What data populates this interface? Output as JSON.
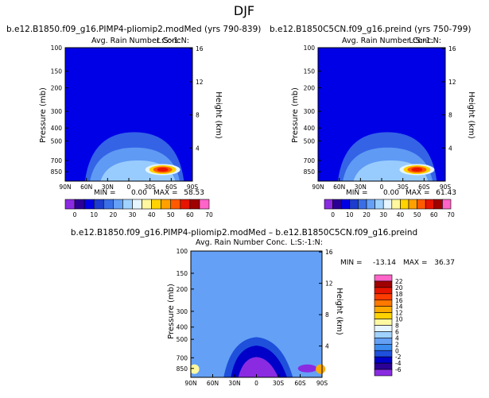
{
  "page_title": "DJF",
  "chart_data": [
    {
      "type": "heatmap",
      "title": "b.e12.B1850.f09_g16.PIMP4-pliomip2.modMed (yrs 790-839)",
      "subtitle": "Avg. Rain Number Conc.",
      "level_label": "L:S:-1:N:",
      "ylabel": "Pressure (mb)",
      "y2label": "Height (km)",
      "x_ticks": [
        "90N",
        "60N",
        "30N",
        "0",
        "30S",
        "60S",
        "90S"
      ],
      "x_range": [
        90,
        -90
      ],
      "y_ticks": [
        100,
        150,
        200,
        300,
        400,
        500,
        700,
        850
      ],
      "y_scale": "log",
      "y_range": [
        100,
        1000
      ],
      "y2_ticks": [
        16,
        12,
        8,
        4
      ],
      "min_label": "MIN =",
      "min": "0.00",
      "max_label": "MAX =",
      "max": "58.53",
      "colorbar": {
        "orientation": "horizontal",
        "labels": [
          "0",
          "10",
          "20",
          "30",
          "40",
          "50",
          "60",
          "70"
        ],
        "colors": [
          "#8a2be2",
          "#2b0096",
          "#0000e6",
          "#1e3ccd",
          "#3a6ee6",
          "#64a0f5",
          "#a0d2ff",
          "#e6f5ff",
          "#fff8a0",
          "#ffd200",
          "#ffa000",
          "#ff5a00",
          "#e61400",
          "#a00000",
          "#ff64c8"
        ]
      },
      "background_value": 0,
      "hotspot": {
        "lat": -48,
        "pressure": 820,
        "value": 58.53
      }
    },
    {
      "type": "heatmap",
      "title": "b.e12.B1850C5CN.f09_g16.preind (yrs 750-799)",
      "subtitle": "Avg. Rain Number Conc.",
      "level_label": "L:S:-1:N:",
      "ylabel": "Pressure (mb)",
      "y2label": "Height (km)",
      "x_ticks": [
        "90N",
        "60N",
        "30N",
        "0",
        "30S",
        "60S",
        "90S"
      ],
      "x_range": [
        90,
        -90
      ],
      "y_ticks": [
        100,
        150,
        200,
        300,
        400,
        500,
        700,
        850
      ],
      "y_scale": "log",
      "y_range": [
        100,
        1000
      ],
      "y2_ticks": [
        16,
        12,
        8,
        4
      ],
      "min_label": "MIN =",
      "min": "0.00",
      "max_label": "MAX =",
      "max": "61.43",
      "colorbar": {
        "orientation": "horizontal",
        "labels": [
          "0",
          "10",
          "20",
          "30",
          "40",
          "50",
          "60",
          "70"
        ],
        "colors": [
          "#8a2be2",
          "#2b0096",
          "#0000e6",
          "#1e3ccd",
          "#3a6ee6",
          "#64a0f5",
          "#a0d2ff",
          "#e6f5ff",
          "#fff8a0",
          "#ffd200",
          "#ffa000",
          "#ff5a00",
          "#e61400",
          "#a00000",
          "#ff64c8"
        ]
      },
      "background_value": 0,
      "hotspot": {
        "lat": -50,
        "pressure": 820,
        "value": 61.43
      }
    },
    {
      "type": "heatmap",
      "title": "b.e12.B1850.f09_g16.PIMP4-pliomip2.modMed – b.e12.B1850C5CN.f09_g16.preind",
      "subtitle": "Avg. Rain Number Conc.",
      "level_label": "L:S:-1:N:",
      "ylabel": "Pressure (mb)",
      "y2label": "Height (km)",
      "x_ticks": [
        "90N",
        "60N",
        "30N",
        "0",
        "30S",
        "60S",
        "90S"
      ],
      "x_range": [
        90,
        -90
      ],
      "y_ticks": [
        100,
        150,
        200,
        300,
        400,
        500,
        700,
        850
      ],
      "y_scale": "log",
      "y_range": [
        100,
        1000
      ],
      "y2_ticks": [
        16,
        12,
        8,
        4
      ],
      "min_label": "MIN =",
      "min": "-13.14",
      "max_label": "MAX =",
      "max": "36.37",
      "colorbar": {
        "orientation": "vertical",
        "labels": [
          "22",
          "20",
          "18",
          "16",
          "14",
          "12",
          "10",
          "8",
          "6",
          "4",
          "2",
          "0",
          "-2",
          "-4",
          "-6"
        ],
        "colors": [
          "#ff64c8",
          "#a00000",
          "#e61400",
          "#ff3c00",
          "#ff7800",
          "#ffaa00",
          "#ffd200",
          "#fff8a0",
          "#e6f5ff",
          "#a0d2ff",
          "#64a0f5",
          "#3c8cf0",
          "#1e50dc",
          "#0000c8",
          "#2b0096",
          "#8a2be2"
        ]
      },
      "background_value": 0
    }
  ]
}
